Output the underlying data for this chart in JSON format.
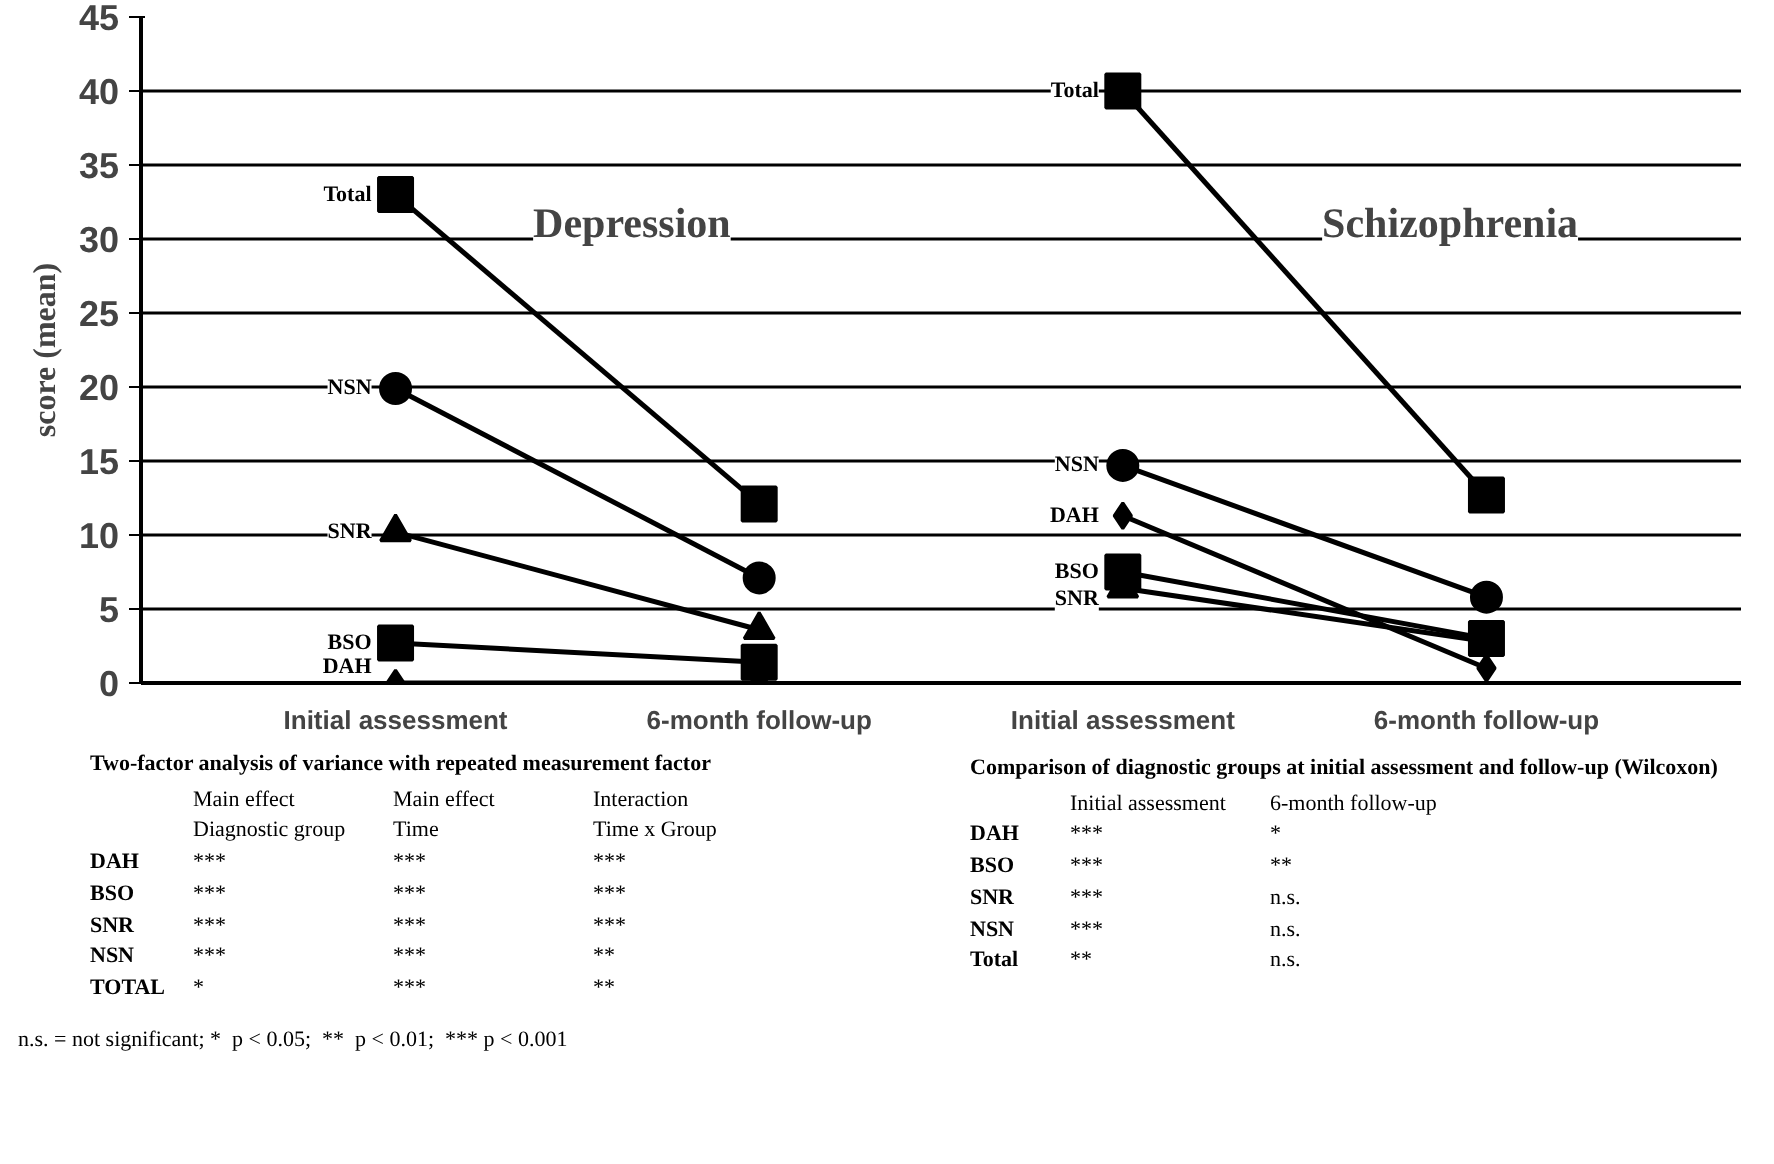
{
  "chart_data": [
    {
      "type": "line",
      "ylabel": "score (mean)",
      "categories": [
        "Initial assessment",
        "6-month follow-up",
        "Initial assessment",
        "6-month follow-up"
      ],
      "ylim": [
        0,
        45
      ],
      "yticks": [
        0,
        5,
        10,
        15,
        20,
        25,
        30,
        35,
        40,
        45
      ],
      "grid": "y",
      "line_style": "solid",
      "annotations": [
        "Depression",
        "Schizophrenia"
      ],
      "series": [
        {
          "name": "Total",
          "color": "#000000",
          "marker": "square",
          "values": [
            33.0,
            12.1,
            null,
            null
          ]
        },
        {
          "name": "NSN",
          "color": "#000000",
          "marker": "circle",
          "values": [
            19.9,
            7.1,
            null,
            null
          ]
        },
        {
          "name": "SNR",
          "color": "#000000",
          "marker": "triangle",
          "values": [
            10.2,
            3.6,
            null,
            null
          ]
        },
        {
          "name": "BSO",
          "color": "#000000",
          "marker": "square",
          "values": [
            2.7,
            1.4,
            null,
            null
          ]
        },
        {
          "name": "DAH",
          "color": "#000000",
          "marker": "diamond",
          "values": [
            0,
            0,
            null,
            null
          ]
        },
        {
          "name": "Total",
          "color": "#000000",
          "marker": "square",
          "values": [
            null,
            null,
            40.0,
            12.7
          ]
        },
        {
          "name": "NSN",
          "color": "#000000",
          "marker": "circle",
          "values": [
            null,
            null,
            14.7,
            5.8
          ]
        },
        {
          "name": "DAH",
          "color": "#000000",
          "marker": "diamond",
          "values": [
            null,
            null,
            11.3,
            1.0
          ]
        },
        {
          "name": "BSO",
          "color": "#000000",
          "marker": "square",
          "values": [
            null,
            null,
            7.5,
            3.0
          ]
        },
        {
          "name": "SNR",
          "color": "#000000",
          "marker": "triangle",
          "values": [
            null,
            null,
            6.4,
            2.8
          ]
        }
      ]
    },
    {
      "type": "other",
      "title": "Two-factor analysis of variance with repeated measurement factor",
      "annotations": [
        "\tMain effect\tMain effect\tInteraction",
        "\tDiagnostic group\tTime\tTime x Group",
        "DAH\t***\t***\t***",
        "BSO\t***\t***\t***",
        "SNR\t***\t***\t***",
        "NSN\t***\t***\t**",
        "TOTAL\t*\t***\t**",
        "n.s. = not significant; *  p < 0.05;  **  p < 0.01;  *** p < 0.001"
      ]
    },
    {
      "type": "other",
      "title": "Comparison of diagnostic groups at initial assessment and follow-up (Wilcoxon)",
      "annotations": [
        "\tInitial assessment\t6-month follow-up",
        "DAH\t***\t*",
        "BSO\t***\t**",
        "SNR\t***\tn.s.",
        "NSN\t***\tn.s.",
        "Total\t**\tn.s."
      ]
    }
  ]
}
